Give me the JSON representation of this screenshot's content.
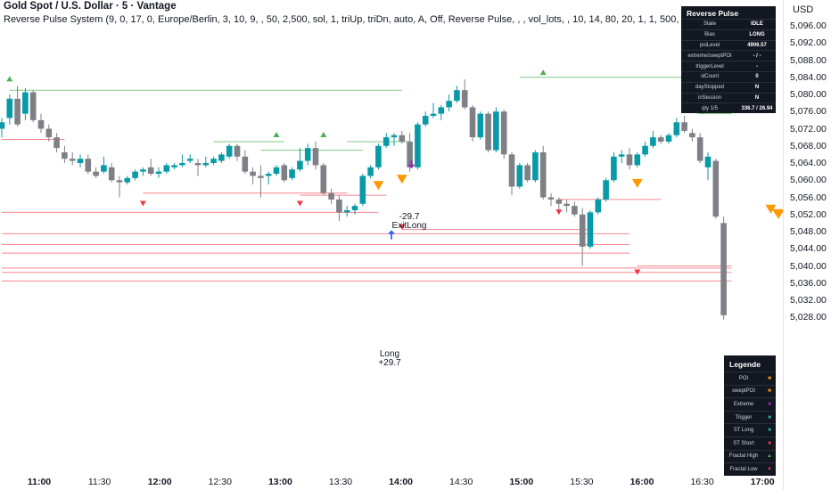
{
  "header": {
    "symbol_line": "Gold Spot / U.S. Dollar · 5 · Vantage",
    "indicator_name": "Reverse Pulse System",
    "indicator_params": "(9, 0, 17, 0, Europe/Berlin, 3, 10, 9, , 50, 2,500, sol, 1, triUp, triDn, auto, A, Off, Reverse Pulse, , , vol_lots, , 10, 14, 80, 20, 1, 1, 500, 2, 3)"
  },
  "price_axis": {
    "currency": "USD",
    "ticks": [
      "5,096.00",
      "5,092.00",
      "5,088.00",
      "5,084.00",
      "5,080.00",
      "5,076.00",
      "5,072.00",
      "5,068.00",
      "5,064.00",
      "5,060.00",
      "5,056.00",
      "5,052.00",
      "5,048.00",
      "5,044.00",
      "5,040.00",
      "5,036.00",
      "5,032.00",
      "5,028.00"
    ]
  },
  "time_axis": {
    "ticks": [
      {
        "label": "11:00",
        "bold": true
      },
      {
        "label": "11:30",
        "bold": false
      },
      {
        "label": "12:00",
        "bold": true
      },
      {
        "label": "12:30",
        "bold": false
      },
      {
        "label": "13:00",
        "bold": true
      },
      {
        "label": "13:30",
        "bold": false
      },
      {
        "label": "14:00",
        "bold": true
      },
      {
        "label": "14:30",
        "bold": false
      },
      {
        "label": "15:00",
        "bold": true
      },
      {
        "label": "15:30",
        "bold": false
      },
      {
        "label": "16:00",
        "bold": true
      },
      {
        "label": "16:30",
        "bold": false
      },
      {
        "label": "17:00",
        "bold": true
      }
    ]
  },
  "status_panel": {
    "title": "Reverse Pulse",
    "rows": [
      {
        "key": "State",
        "value": "IDLE"
      },
      {
        "key": "Bias",
        "value": "LONG"
      },
      {
        "key": "poiLevel",
        "value": "4906.57"
      },
      {
        "key": "extreme/sweptPOI",
        "value": "- / -"
      },
      {
        "key": "triggerLevel",
        "value": "-"
      },
      {
        "key": "slCount",
        "value": "0"
      },
      {
        "key": "dayStopped",
        "value": "N"
      },
      {
        "key": "inSession",
        "value": "N"
      },
      {
        "key": "qty 1/5",
        "value": "336.7 / 26.94"
      }
    ]
  },
  "legend_panel": {
    "title": "Legende",
    "rows": [
      {
        "key": "POI",
        "symbol": "■",
        "color": "#ff9800"
      },
      {
        "key": "sweptPOI",
        "symbol": "■",
        "color": "#ff9800"
      },
      {
        "key": "Extreme",
        "symbol": "■",
        "color": "#9c27b0"
      },
      {
        "key": "Trigger",
        "symbol": "■",
        "color": "#26a69a"
      },
      {
        "key": "ST Long",
        "symbol": "■",
        "color": "#26a69a"
      },
      {
        "key": "ST Short",
        "symbol": "■",
        "color": "#f23645"
      },
      {
        "key": "Fractal High",
        "symbol": "▲",
        "color": "#4caf50"
      },
      {
        "key": "Fractal Low",
        "symbol": "▼",
        "color": "#f23645"
      }
    ]
  },
  "annotations": {
    "exit_pnl": "-29.7",
    "exit_label": "ExitLong",
    "entry_label": "Long",
    "entry_pnl": "+29.7"
  },
  "colors": {
    "bull": "#089aa6",
    "bear": "#7e8086",
    "fractal_high": "#4caf50",
    "fractal_low": "#f23645",
    "poi": "#ff9800",
    "exit": "#9c27b0",
    "entry": "#2962ff",
    "last_price": "#ff9800"
  },
  "chart_data": {
    "type": "candlestick",
    "title": "Gold Spot / U.S. Dollar · 5 · Vantage",
    "interval": "5",
    "ylim": [
      5026.5,
      5099.5
    ],
    "x_ticks": [
      "11:00",
      "11:30",
      "12:00",
      "12:30",
      "13:00",
      "13:30",
      "14:00",
      "14:30",
      "15:00",
      "15:30",
      "16:00",
      "16:30",
      "17:00"
    ],
    "candles": [
      [
        5072.0,
        5074.5,
        5070.0,
        5073.5
      ],
      [
        5074.5,
        5080.0,
        5073.0,
        5079.0
      ],
      [
        5079.0,
        5082.0,
        5072.5,
        5073.0
      ],
      [
        5075.5,
        5081.5,
        5074.0,
        5080.5
      ],
      [
        5080.5,
        5081.0,
        5073.5,
        5074.0
      ],
      [
        5074.0,
        5075.5,
        5071.0,
        5072.0
      ],
      [
        5072.0,
        5073.0,
        5069.0,
        5070.0
      ],
      [
        5070.0,
        5071.0,
        5066.5,
        5067.5
      ],
      [
        5066.5,
        5068.0,
        5064.0,
        5065.0
      ],
      [
        5065.0,
        5066.5,
        5063.5,
        5064.5
      ],
      [
        5064.0,
        5066.0,
        5063.0,
        5065.0
      ],
      [
        5065.0,
        5066.0,
        5061.5,
        5062.0
      ],
      [
        5062.0,
        5063.0,
        5060.5,
        5061.0
      ],
      [
        5062.0,
        5065.5,
        5061.5,
        5063.5
      ],
      [
        5063.0,
        5064.0,
        5059.5,
        5060.0
      ],
      [
        5060.0,
        5061.0,
        5056.0,
        5059.5
      ],
      [
        5059.5,
        5061.0,
        5059.0,
        5060.5
      ],
      [
        5060.5,
        5062.5,
        5060.0,
        5062.0
      ],
      [
        5062.0,
        5063.0,
        5061.0,
        5062.5
      ],
      [
        5063.0,
        5065.0,
        5061.0,
        5061.5
      ],
      [
        5061.5,
        5063.0,
        5060.5,
        5062.0
      ],
      [
        5062.0,
        5064.0,
        5061.5,
        5063.5
      ],
      [
        5063.0,
        5064.0,
        5062.5,
        5063.5
      ],
      [
        5063.5,
        5066.0,
        5063.0,
        5064.0
      ],
      [
        5064.5,
        5066.0,
        5064.0,
        5065.0
      ],
      [
        5064.0,
        5065.0,
        5061.0,
        5063.5
      ],
      [
        5063.5,
        5065.5,
        5063.0,
        5064.0
      ],
      [
        5064.0,
        5065.5,
        5063.5,
        5065.0
      ],
      [
        5064.5,
        5066.5,
        5064.0,
        5066.0
      ],
      [
        5065.5,
        5068.5,
        5065.0,
        5068.0
      ],
      [
        5068.0,
        5068.5,
        5064.5,
        5065.5
      ],
      [
        5065.5,
        5067.0,
        5061.5,
        5062.0
      ],
      [
        5062.0,
        5063.0,
        5059.0,
        5061.0
      ],
      [
        5061.0,
        5063.5,
        5056.0,
        5060.5
      ],
      [
        5061.0,
        5062.0,
        5059.0,
        5061.5
      ],
      [
        5061.5,
        5063.5,
        5061.0,
        5063.0
      ],
      [
        5063.5,
        5064.0,
        5059.5,
        5060.0
      ],
      [
        5060.5,
        5063.0,
        5060.0,
        5062.5
      ],
      [
        5062.5,
        5067.5,
        5062.0,
        5064.5
      ],
      [
        5064.5,
        5068.5,
        5063.5,
        5067.5
      ],
      [
        5067.5,
        5069.0,
        5062.5,
        5063.5
      ],
      [
        5063.5,
        5064.0,
        5056.5,
        5057.0
      ],
      [
        5057.0,
        5058.0,
        5054.5,
        5055.5
      ],
      [
        5055.5,
        5056.5,
        5050.5,
        5052.5
      ],
      [
        5052.5,
        5054.0,
        5051.5,
        5053.0
      ],
      [
        5053.0,
        5054.5,
        5052.0,
        5054.0
      ],
      [
        5054.5,
        5061.5,
        5054.0,
        5061.0
      ],
      [
        5061.0,
        5063.5,
        5060.5,
        5063.0
      ],
      [
        5063.0,
        5068.5,
        5062.5,
        5068.0
      ],
      [
        5068.0,
        5071.0,
        5067.5,
        5070.0
      ],
      [
        5070.0,
        5071.0,
        5068.0,
        5070.5
      ],
      [
        5070.5,
        5071.5,
        5068.5,
        5069.0
      ],
      [
        5069.0,
        5071.0,
        5062.0,
        5063.0
      ],
      [
        5063.0,
        5073.5,
        5062.5,
        5073.0
      ],
      [
        5073.0,
        5076.0,
        5072.5,
        5075.0
      ],
      [
        5075.0,
        5078.0,
        5074.5,
        5075.5
      ],
      [
        5075.5,
        5077.5,
        5074.0,
        5077.0
      ],
      [
        5077.0,
        5080.0,
        5076.0,
        5078.5
      ],
      [
        5078.5,
        5082.0,
        5078.0,
        5081.0
      ],
      [
        5081.0,
        5083.5,
        5076.5,
        5077.0
      ],
      [
        5077.0,
        5077.5,
        5069.0,
        5070.0
      ],
      [
        5070.0,
        5076.0,
        5069.5,
        5075.5
      ],
      [
        5075.5,
        5076.0,
        5066.5,
        5067.0
      ],
      [
        5067.0,
        5077.0,
        5066.5,
        5076.0
      ],
      [
        5076.0,
        5076.5,
        5065.0,
        5066.0
      ],
      [
        5066.0,
        5066.5,
        5056.5,
        5058.5
      ],
      [
        5058.5,
        5064.0,
        5058.0,
        5063.5
      ],
      [
        5063.5,
        5064.0,
        5059.5,
        5060.0
      ],
      [
        5060.0,
        5067.0,
        5059.5,
        5066.5
      ],
      [
        5066.5,
        5068.0,
        5055.5,
        5056.0
      ],
      [
        5056.0,
        5057.0,
        5054.0,
        5055.5
      ],
      [
        5055.5,
        5056.0,
        5052.5,
        5054.5
      ],
      [
        5054.5,
        5055.5,
        5052.5,
        5054.0
      ],
      [
        5054.0,
        5055.0,
        5051.5,
        5052.0
      ],
      [
        5052.0,
        5053.5,
        5040.0,
        5044.5
      ],
      [
        5044.5,
        5053.0,
        5044.0,
        5052.5
      ],
      [
        5052.5,
        5056.0,
        5052.0,
        5055.5
      ],
      [
        5055.5,
        5060.5,
        5055.0,
        5060.0
      ],
      [
        5060.0,
        5066.5,
        5059.5,
        5065.5
      ],
      [
        5065.5,
        5067.0,
        5064.0,
        5066.0
      ],
      [
        5066.0,
        5067.5,
        5062.5,
        5063.5
      ],
      [
        5063.5,
        5066.5,
        5063.0,
        5066.0
      ],
      [
        5066.0,
        5069.0,
        5065.5,
        5068.0
      ],
      [
        5068.0,
        5071.5,
        5067.5,
        5070.0
      ],
      [
        5070.0,
        5070.5,
        5068.5,
        5069.0
      ],
      [
        5069.0,
        5071.0,
        5068.5,
        5070.5
      ],
      [
        5070.5,
        5074.5,
        5070.0,
        5073.5
      ],
      [
        5073.5,
        5075.0,
        5071.0,
        5071.5
      ],
      [
        5071.0,
        5072.0,
        5069.0,
        5070.0
      ],
      [
        5070.0,
        5071.0,
        5064.0,
        5064.5
      ],
      [
        5063.0,
        5066.5,
        5060.0,
        5065.5
      ],
      [
        5064.5,
        5065.0,
        5051.0,
        5051.5
      ],
      [
        5050.0,
        5051.5,
        5027.5,
        5028.5
      ]
    ],
    "fractal_highs": [
      {
        "i": 1,
        "price": 5082.0
      },
      {
        "i": 35,
        "price": 5069.0
      },
      {
        "i": 41,
        "price": 5069.0
      },
      {
        "i": 69,
        "price": 5083.5
      },
      {
        "i": 89,
        "price": 5074.5
      }
    ],
    "fractal_lows": [
      {
        "i": 18,
        "price": 5056.0
      },
      {
        "i": 38,
        "price": 5056.0
      },
      {
        "i": 51,
        "price": 5050.5
      },
      {
        "i": 71,
        "price": 5054.0
      },
      {
        "i": 81,
        "price": 5040.0
      }
    ],
    "fractal_high_lines": [
      {
        "from": 1,
        "to": 51,
        "price": 5081.0
      },
      {
        "from": 27,
        "to": 36,
        "price": 5069.0
      },
      {
        "from": 33,
        "to": 46,
        "price": 5067.0
      },
      {
        "from": 44,
        "to": 52,
        "price": 5069.0
      },
      {
        "from": 66,
        "to": 93,
        "price": 5084.0
      },
      {
        "from": 89,
        "to": 93,
        "price": 5075.5
      }
    ],
    "low_lines": [
      {
        "from": 0,
        "to": 8,
        "price": 5069.5
      },
      {
        "from": 18,
        "to": 44,
        "price": 5057.0
      },
      {
        "from": 38,
        "to": 49,
        "price": 5056.5
      },
      {
        "from": 0,
        "to": 48,
        "price": 5052.5
      },
      {
        "from": 51,
        "to": 75,
        "price": 5048.5
      },
      {
        "from": 0,
        "to": 80,
        "price": 5047.5
      },
      {
        "from": 0,
        "to": 80,
        "price": 5045.0
      },
      {
        "from": 0,
        "to": 80,
        "price": 5043.0
      },
      {
        "from": 0,
        "to": 93,
        "price": 5039.5
      },
      {
        "from": 0,
        "to": 93,
        "price": 5038.5
      },
      {
        "from": 0,
        "to": 93,
        "price": 5036.5
      },
      {
        "from": 71,
        "to": 84,
        "price": 5055.5
      },
      {
        "from": 81,
        "to": 93,
        "price": 5040.0
      }
    ],
    "poi_markers": [
      {
        "i": 48,
        "price": 5057.5
      },
      {
        "i": 51,
        "price": 5059.0
      },
      {
        "i": 81,
        "price": 5058.0
      },
      {
        "i": 98,
        "price": 5052.0
      }
    ],
    "exit_marker": {
      "i": 53,
      "price": 5063.0
    },
    "entry_marker": {
      "i": 50,
      "price": 5048.5
    },
    "last_price": 5052.0
  }
}
